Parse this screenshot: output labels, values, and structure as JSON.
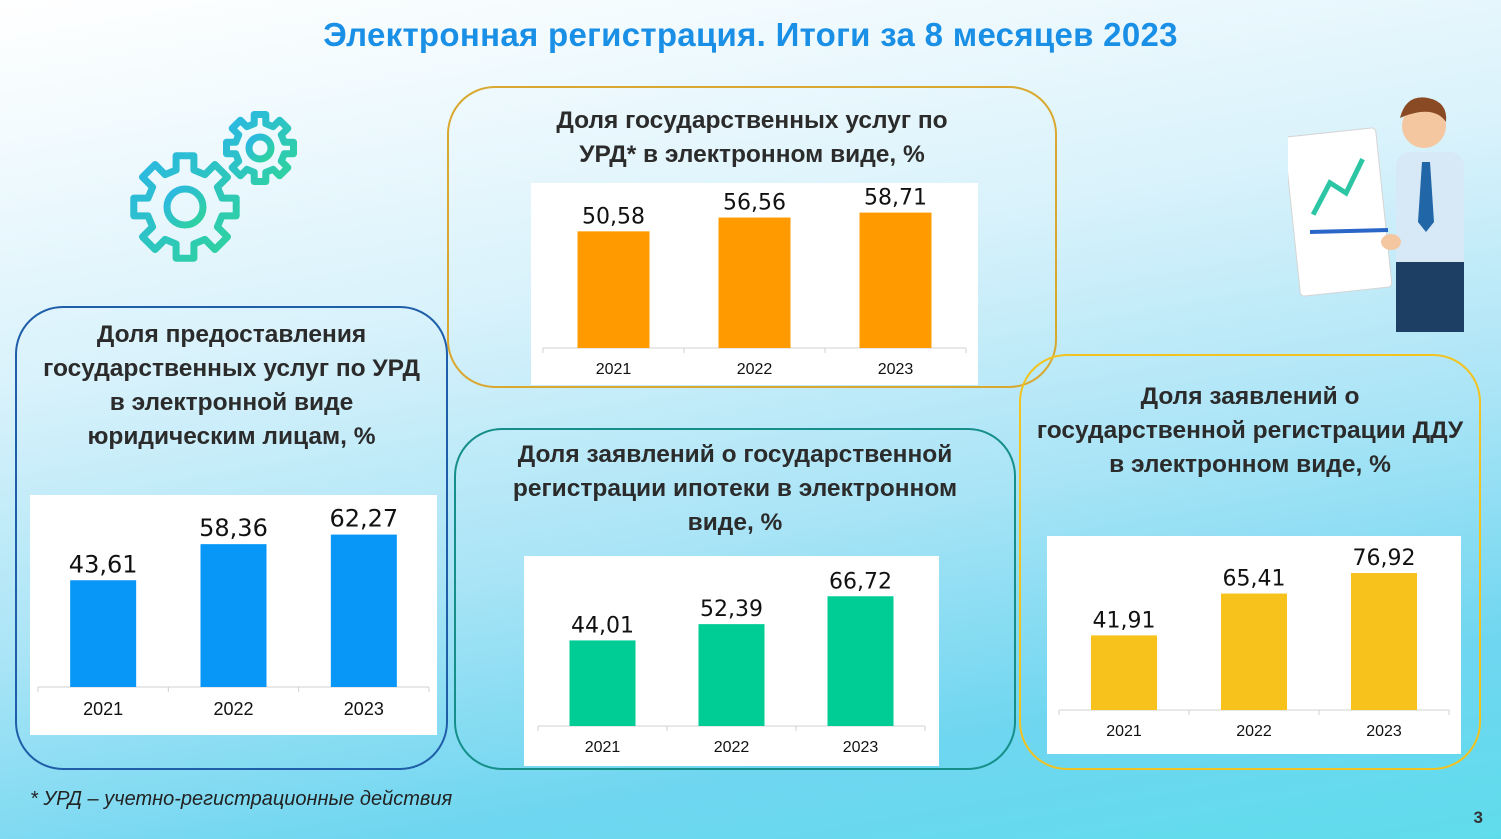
{
  "title": "Электронная регистрация. Итоги за 8 месяцев 2023",
  "footnote": "* УРД – учетно-регистрационные действия",
  "page_number": "3",
  "icons": {
    "gears": "gears-icon",
    "presenter": "presenter-chart-illustration"
  },
  "chart_data": [
    {
      "type": "bar",
      "title": "Доля государственных услуг по УРД* в электронном виде, %",
      "categories": [
        "2021",
        "2022",
        "2023"
      ],
      "values": [
        50.58,
        56.56,
        58.71
      ],
      "labels": [
        "50,58",
        "56,56",
        "58,71"
      ],
      "color": "#ff9b00",
      "border_color": "#d9a830"
    },
    {
      "type": "bar",
      "title": "Доля предоставления государственных услуг по УРД в электронной виде юридическим лицам, %",
      "categories": [
        "2021",
        "2022",
        "2023"
      ],
      "values": [
        43.61,
        58.36,
        62.27
      ],
      "labels": [
        "43,61",
        "58,36",
        "62,27"
      ],
      "color": "#0897f7",
      "border_color": "#1f5ea8"
    },
    {
      "type": "bar",
      "title": "Доля заявлений о государственной регистрации ипотеки в электронном виде, %",
      "categories": [
        "2021",
        "2022",
        "2023"
      ],
      "values": [
        44.01,
        52.39,
        66.72
      ],
      "labels": [
        "44,01",
        "52,39",
        "66,72"
      ],
      "color": "#00cc95",
      "border_color": "#168f8a"
    },
    {
      "type": "bar",
      "title": "Доля заявлений о государственной регистрации ДДУ в электронном виде, %",
      "categories": [
        "2021",
        "2022",
        "2023"
      ],
      "values": [
        41.91,
        65.41,
        76.92
      ],
      "labels": [
        "41,91",
        "65,41",
        "76,92"
      ],
      "color": "#f7c21c",
      "border_color": "#f2c320"
    }
  ]
}
